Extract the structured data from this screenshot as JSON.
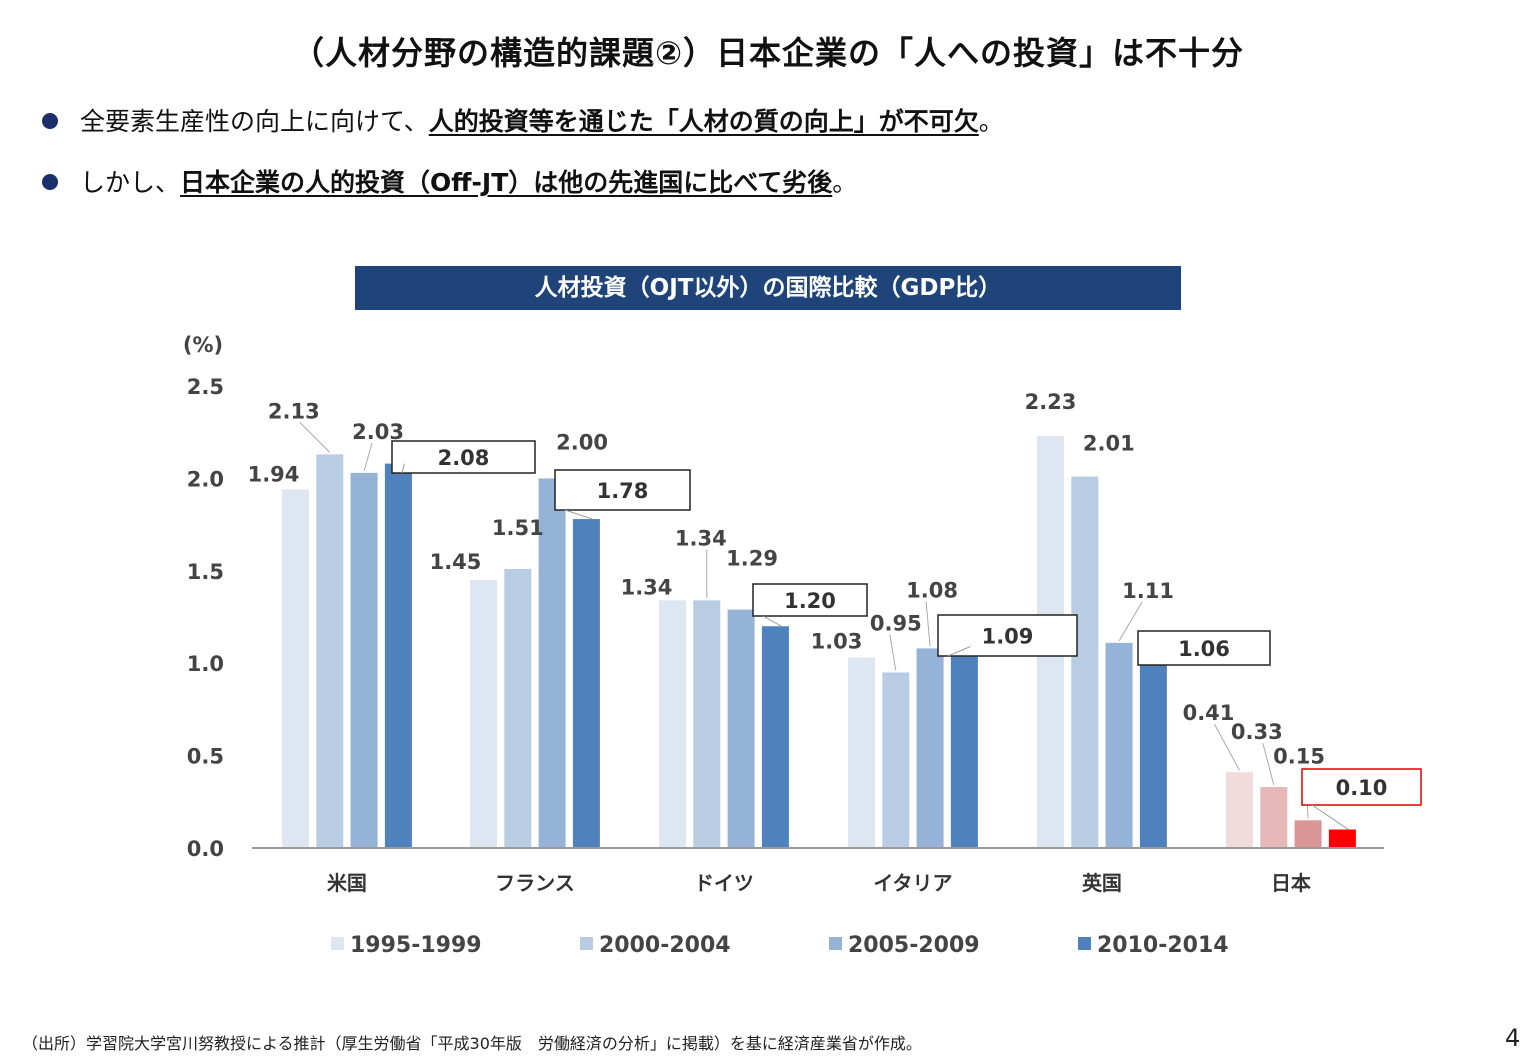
{
  "title": "（人材分野の構造的課題②）日本企業の「人への投資」は不十分",
  "bullets": [
    {
      "lead": "全要素生産性の向上に向けて、",
      "emphasis": "人的投資等を通じた「人材の質の向上」が不可欠",
      "tail": "。"
    },
    {
      "lead": "しかし、",
      "emphasis": "日本企業の人的投資（Off-JT）は他の先進国に比べて劣後",
      "tail": "。"
    }
  ],
  "chart_data": {
    "type": "bar",
    "title": "人材投資（OJT以外）の国際比較（GDP比）",
    "ylabel": "(%)",
    "ylim": [
      0,
      2.5
    ],
    "yticks": [
      "0.0",
      "0.5",
      "1.0",
      "1.5",
      "2.0",
      "2.5"
    ],
    "categories": [
      "米国",
      "フランス",
      "ドイツ",
      "イタリア",
      "英国",
      "日本"
    ],
    "series": [
      {
        "name": "1995-1999",
        "values": [
          1.94,
          1.45,
          1.34,
          1.03,
          2.23,
          0.41
        ],
        "labels": [
          "1.94",
          "1.45",
          "1.34",
          "1.03",
          "2.23",
          "0.41"
        ]
      },
      {
        "name": "2000-2004",
        "values": [
          2.13,
          1.51,
          1.34,
          0.95,
          2.01,
          0.33
        ],
        "labels": [
          "2.13",
          "1.51",
          "1.34",
          "0.95",
          "2.01",
          "0.33"
        ]
      },
      {
        "name": "2005-2009",
        "values": [
          2.03,
          2.0,
          1.29,
          1.08,
          1.11,
          0.15
        ],
        "labels": [
          "2.03",
          "2.00",
          "1.29",
          "1.08",
          "1.11",
          "0.15"
        ]
      },
      {
        "name": "2010-2014",
        "values": [
          2.08,
          1.78,
          1.2,
          1.09,
          1.06,
          0.1
        ],
        "labels": [
          "2.08",
          "1.78",
          "1.20",
          "1.09",
          "1.06",
          "0.10"
        ]
      }
    ],
    "colors": [
      "#dde6f1",
      "#b8cce4",
      "#95b3d7",
      "#4f81bd"
    ],
    "japan_colors": [
      "#f2dcdb",
      "#e6b9b8",
      "#d99694",
      "#ff0000"
    ],
    "highlight_box_color": "#e00000",
    "grid": false,
    "legend": "bottom"
  },
  "footnote": "（出所）学習院大学宮川努教授による推計（厚生労働省「平成30年版　労働経済の分析」に掲載）を基に経済産業省が作成。",
  "page_number": "4"
}
